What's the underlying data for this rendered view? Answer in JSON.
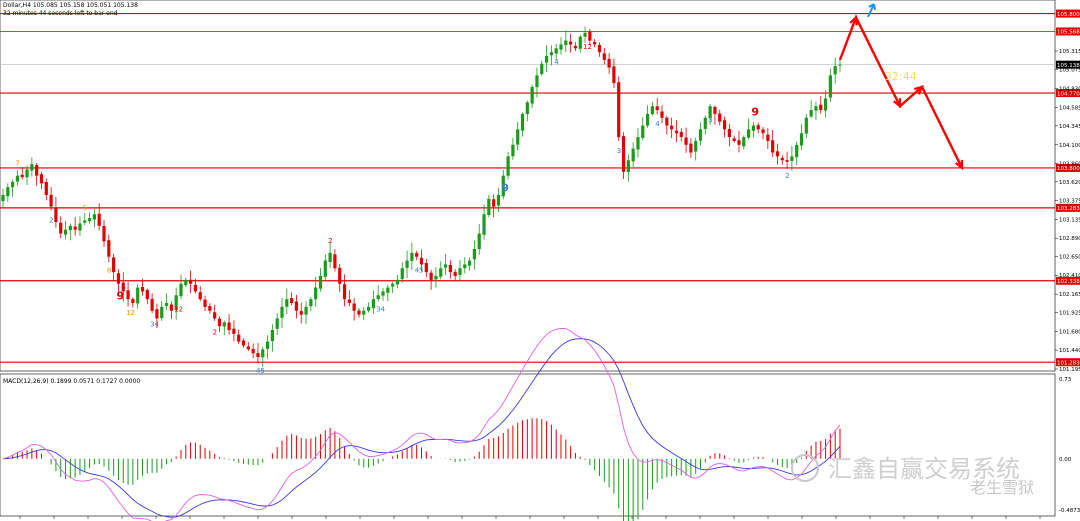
{
  "header": {
    "symbol_line": "Dollar,H4   105.085 105.158 105.051 105.138",
    "countdown": "32 minutes 44 seconds left to bar end"
  },
  "colors": {
    "bull": "#1a9c1a",
    "bear": "#e00000",
    "level_line": "#e00000",
    "thin_level": "#f08080",
    "macd_line": "#3a3ad8",
    "signal_line": "#e060e0",
    "forecast": "#ff0000",
    "arrow_up": "#1e90ff"
  },
  "watermark": {
    "text": "汇鑫自赢交易系统",
    "brand": "老生雪狱"
  },
  "overlay_text": "32:44",
  "chart_data": [
    {
      "type": "candlestick",
      "ylim": [
        101.195,
        105.95
      ],
      "price_levels": [
        {
          "value": 105.8,
          "label": "105.800"
        },
        {
          "value": 105.568,
          "label": "105.568"
        },
        {
          "value": 104.77,
          "label": "104.770"
        },
        {
          "value": 103.8,
          "label": "103.800"
        },
        {
          "value": 103.283,
          "label": "103.283"
        },
        {
          "value": 102.338,
          "label": "102.338"
        },
        {
          "value": 101.283,
          "label": "101.283"
        }
      ],
      "current_price": {
        "value": 105.138,
        "label": "105.138"
      },
      "y_ticks": [
        "105.315",
        "105.075",
        "104.830",
        "104.585",
        "104.345",
        "104.100",
        "103.860",
        "103.620",
        "103.375",
        "103.135",
        "102.890",
        "102.650",
        "102.410",
        "102.165",
        "101.925",
        "101.680",
        "101.440",
        "101.195"
      ],
      "forecast_path": [
        105.2,
        105.75,
        104.6,
        104.85,
        103.8
      ],
      "closes": [
        103.45,
        103.55,
        103.62,
        103.7,
        103.68,
        103.78,
        103.85,
        103.7,
        103.6,
        103.45,
        103.3,
        103.1,
        102.95,
        103.0,
        103.05,
        103.0,
        103.08,
        103.12,
        103.15,
        103.2,
        103.05,
        102.85,
        102.65,
        102.45,
        102.3,
        102.2,
        102.1,
        102.05,
        102.25,
        102.2,
        102.1,
        101.95,
        101.85,
        102.0,
        102.05,
        101.95,
        102.15,
        102.3,
        102.35,
        102.3,
        102.2,
        102.1,
        102.0,
        101.95,
        101.85,
        101.75,
        101.8,
        101.7,
        101.65,
        101.55,
        101.5,
        101.45,
        101.4,
        101.35,
        101.45,
        101.55,
        101.7,
        101.85,
        102.0,
        102.1,
        102.05,
        101.95,
        101.9,
        102.0,
        102.1,
        102.25,
        102.4,
        102.6,
        102.7,
        102.5,
        102.3,
        102.1,
        102.05,
        101.95,
        101.9,
        101.95,
        102.0,
        102.1,
        102.15,
        102.2,
        102.25,
        102.3,
        102.35,
        102.5,
        102.6,
        102.7,
        102.65,
        102.55,
        102.45,
        102.35,
        102.4,
        102.5,
        102.55,
        102.45,
        102.4,
        102.5,
        102.55,
        102.6,
        102.75,
        102.95,
        103.2,
        103.4,
        103.3,
        103.45,
        103.7,
        103.95,
        104.1,
        104.3,
        104.5,
        104.65,
        104.85,
        105.0,
        105.15,
        105.25,
        105.3,
        105.35,
        105.4,
        105.45,
        105.4,
        105.35,
        105.5,
        105.55,
        105.45,
        105.4,
        105.3,
        105.2,
        105.1,
        104.9,
        104.2,
        103.75,
        103.9,
        104.05,
        104.2,
        104.35,
        104.5,
        104.6,
        104.55,
        104.45,
        104.35,
        104.3,
        104.25,
        104.2,
        104.1,
        104.0,
        104.15,
        104.3,
        104.45,
        104.6,
        104.5,
        104.4,
        104.3,
        104.2,
        104.15,
        104.1,
        104.2,
        104.3,
        104.35,
        104.3,
        104.25,
        104.15,
        104.0,
        103.95,
        103.9,
        103.88,
        103.95,
        104.1,
        104.25,
        104.45,
        104.55,
        104.6,
        104.55,
        104.7,
        105.0,
        105.12,
        105.14
      ],
      "count_labels": [
        {
          "i": 3,
          "t": "7",
          "c": "#ff8c00",
          "above": true
        },
        {
          "i": 10,
          "t": "2",
          "c": "#3a7bd5",
          "above": false
        },
        {
          "i": 17,
          "t": "5",
          "c": "#ff8c00",
          "above": true
        },
        {
          "i": 22,
          "t": "8",
          "c": "#ff8c00",
          "above": false
        },
        {
          "i": 24,
          "t": "9",
          "c": "#e00000",
          "above": false
        },
        {
          "i": 26,
          "t": "12",
          "c": "#ff8c00",
          "above": false
        },
        {
          "i": 31,
          "t": "34",
          "c": "#3a7bd5",
          "above": false
        },
        {
          "i": 36,
          "t": "12",
          "c": "#e00000",
          "above": false
        },
        {
          "i": 44,
          "t": "2",
          "c": "#e00000",
          "above": false
        },
        {
          "i": 53,
          "t": "45",
          "c": "#3a7bd5",
          "above": false
        },
        {
          "i": 68,
          "t": "2",
          "c": "#e00000",
          "above": true
        },
        {
          "i": 78,
          "t": "34",
          "c": "#3a7bd5",
          "above": false
        },
        {
          "i": 86,
          "t": "45",
          "c": "#3a7bd5",
          "above": false
        },
        {
          "i": 100,
          "t": "5",
          "c": "#3a7bd5",
          "above": false
        },
        {
          "i": 104,
          "t": "9",
          "c": "#3a7bd5",
          "above": false
        },
        {
          "i": 115,
          "t": "4",
          "c": "#3a7bd5",
          "above": false
        },
        {
          "i": 121,
          "t": "12",
          "c": "#e00000",
          "above": false
        },
        {
          "i": 128,
          "t": "3",
          "c": "#3a7bd5",
          "above": false
        },
        {
          "i": 136,
          "t": "4",
          "c": "#3a7bd5",
          "above": false
        },
        {
          "i": 147,
          "t": "3",
          "c": "#3a7bd5",
          "above": false
        },
        {
          "i": 156,
          "t": "9",
          "c": "#e00000",
          "above": true
        },
        {
          "i": 163,
          "t": "2",
          "c": "#3a7bd5",
          "above": false
        }
      ]
    },
    {
      "type": "macd",
      "title": "MACD(12,26,9) 0.1899 0.0571 0.1727 0.0000",
      "ylim": [
        -0.4873,
        0.73
      ],
      "y_ticks": [
        "0.73",
        "0.00",
        "-0.4873"
      ]
    }
  ]
}
